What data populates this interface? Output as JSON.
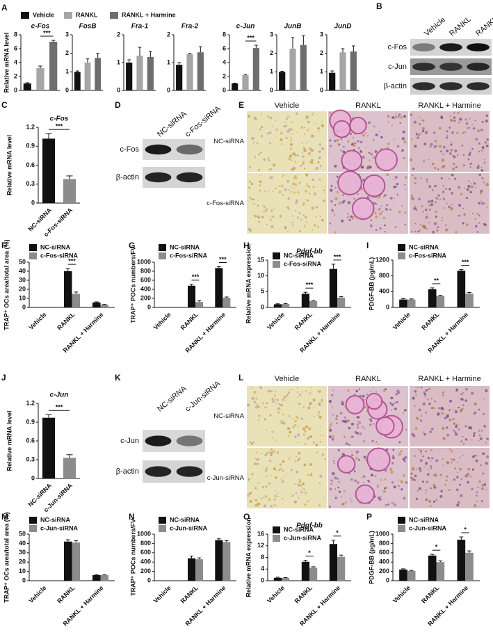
{
  "panel_a": {
    "label": "A",
    "ylabel": "Relative mRNA level",
    "legend": [
      {
        "name": "Vehicle",
        "color": "#111111"
      },
      {
        "name": "RANKL",
        "color": "#a6a6a6"
      },
      {
        "name": "RANKL + Harmine",
        "color": "#6e6e6e"
      }
    ]
  },
  "chart_data": [
    {
      "type": "bar",
      "title": "c-Fos",
      "values": [
        1,
        3.2,
        7.0
      ],
      "errors": [
        0.1,
        0.3,
        0.2
      ],
      "annotations": [
        null,
        null,
        "***"
      ],
      "ylim": [
        0,
        8
      ],
      "yticks": [
        0,
        2,
        4,
        6,
        8
      ]
    },
    {
      "type": "bar",
      "title": "FosB",
      "values": [
        1,
        1.5,
        1.75
      ],
      "errors": [
        0.05,
        0.2,
        0.25
      ],
      "ylim": [
        0,
        3
      ],
      "yticks": [
        0,
        1,
        2,
        3
      ]
    },
    {
      "type": "bar",
      "title": "Fra-1",
      "values": [
        1.0,
        1.25,
        1.2
      ],
      "errors": [
        0.1,
        0.3,
        0.2
      ],
      "ylim": [
        0,
        2
      ],
      "yticks": [
        0,
        1,
        2
      ]
    },
    {
      "type": "bar",
      "title": "Fra-2",
      "values": [
        0.92,
        1.3,
        1.37
      ],
      "errors": [
        0.08,
        0.03,
        0.2
      ],
      "ylim": [
        0,
        2
      ],
      "yticks": [
        0,
        1,
        2
      ]
    },
    {
      "type": "bar",
      "title": "c-Jun",
      "values": [
        1,
        2.2,
        6.1
      ],
      "errors": [
        0.05,
        0.1,
        0.4
      ],
      "annotations": [
        null,
        null,
        "***"
      ],
      "ylim": [
        0,
        8
      ],
      "yticks": [
        0,
        2,
        4,
        6,
        8
      ]
    },
    {
      "type": "bar",
      "title": "JunB",
      "values": [
        1,
        2.25,
        2.45
      ],
      "errors": [
        0.03,
        0.6,
        0.5
      ],
      "ylim": [
        0,
        3
      ],
      "yticks": [
        0,
        1,
        2,
        3
      ]
    },
    {
      "type": "bar",
      "title": "JunD",
      "values": [
        0.95,
        2.05,
        2.1
      ],
      "errors": [
        0.1,
        0.2,
        0.3
      ],
      "ylim": [
        0,
        3
      ],
      "yticks": [
        0,
        1,
        2,
        3
      ]
    },
    {
      "type": "bar",
      "label": "C",
      "title": "c-Fos",
      "ylabel": "Relative mRNA level",
      "categories": [
        "NC-siRNA",
        "c-Fos-siRNA"
      ],
      "colors": [
        "#111111",
        "#8c8c8c"
      ],
      "values": [
        1.02,
        0.38
      ],
      "errors": [
        0.08,
        0.05
      ],
      "annotations": [
        null,
        "***"
      ],
      "ylim": [
        0,
        1.2
      ],
      "yticks": [
        0,
        0.3,
        0.6,
        0.9,
        1.2
      ]
    },
    {
      "type": "grouped_bar",
      "label": "F",
      "ylabel": "TRAP⁺ OCs area/total area (%)",
      "categories": [
        "Vehicle",
        "RANKL",
        "RANKL + Harmine"
      ],
      "series": [
        {
          "name": "NC-siRNA",
          "color": "#111111",
          "values": [
            0,
            40,
            5.5
          ],
          "errors": [
            0,
            3,
            0.6
          ]
        },
        {
          "name": "c-Fos-siRNA",
          "color": "#8c8c8c",
          "values": [
            0,
            15,
            3
          ],
          "errors": [
            0,
            2,
            0.5
          ]
        }
      ],
      "annotations": [
        null,
        "***",
        null
      ],
      "ylim": [
        0,
        50
      ],
      "yticks": [
        0,
        10,
        20,
        30,
        40,
        50
      ]
    },
    {
      "type": "grouped_bar",
      "label": "G",
      "ylabel": "TRAP⁺ POCs numbers/FV",
      "categories": [
        "Vehicle",
        "RANKL",
        "RANKL + Harmine"
      ],
      "series": [
        {
          "name": "NC-siRNA",
          "color": "#111111",
          "values": [
            0,
            480,
            870
          ],
          "errors": [
            0,
            30,
            30
          ]
        },
        {
          "name": "c-Fos-siRNA",
          "color": "#8c8c8c",
          "values": [
            0,
            120,
            210
          ],
          "errors": [
            0,
            25,
            20
          ]
        }
      ],
      "annotations": [
        null,
        "***",
        "***"
      ],
      "ylim": [
        0,
        1000
      ],
      "yticks": [
        0,
        200,
        400,
        600,
        800,
        1000
      ]
    },
    {
      "type": "grouped_bar",
      "label": "H",
      "title": "Pdgf-bb",
      "ylabel": "Relative mRNA expression",
      "categories": [
        "Vehicle",
        "RANKL",
        "RANKL + Harmine"
      ],
      "series": [
        {
          "name": "NC-siRNA",
          "color": "#111111",
          "values": [
            1,
            4.3,
            12.2
          ],
          "errors": [
            0.15,
            0.5,
            1.5
          ]
        },
        {
          "name": "c-Fos-siRNA",
          "color": "#8c8c8c",
          "values": [
            1.1,
            2,
            3.1
          ],
          "errors": [
            0.15,
            0.2,
            0.3
          ]
        }
      ],
      "annotations": [
        null,
        "***",
        "***"
      ],
      "ylim": [
        0,
        15
      ],
      "yticks": [
        0,
        5,
        10,
        15
      ]
    },
    {
      "type": "grouped_bar",
      "label": "I",
      "ylabel": "PDGF-BB (pg/mL)",
      "categories": [
        "Vehicle",
        "RANKL",
        "RANKL + Harmine"
      ],
      "series": [
        {
          "name": "NC-siRNA",
          "color": "#111111",
          "values": [
            200,
            460,
            930
          ],
          "errors": [
            20,
            35,
            30
          ]
        },
        {
          "name": "c-Fos-siRNA",
          "color": "#8c8c8c",
          "values": [
            200,
            290,
            350
          ],
          "errors": [
            15,
            15,
            30
          ]
        }
      ],
      "annotations": [
        null,
        "**",
        "***"
      ],
      "ylim": [
        0,
        1200
      ],
      "yticks": [
        0,
        400,
        800,
        1200
      ]
    },
    {
      "type": "bar",
      "label": "J",
      "title": "c-Jun",
      "ylabel": "Relative mRNA level",
      "categories": [
        "NC-siRNA",
        "c-Jun-siRNA"
      ],
      "colors": [
        "#111111",
        "#8c8c8c"
      ],
      "values": [
        0.97,
        0.33
      ],
      "errors": [
        0.05,
        0.05
      ],
      "annotations": [
        null,
        "***"
      ],
      "ylim": [
        0,
        1.2
      ],
      "yticks": [
        0,
        0.3,
        0.6,
        0.9,
        1.2
      ]
    },
    {
      "type": "grouped_bar",
      "label": "M",
      "ylabel": "TRAP⁺ OCs area/total area (%)",
      "categories": [
        "Vehicle",
        "RANKL",
        "RANKL + Harmine"
      ],
      "series": [
        {
          "name": "NC-siRNA",
          "color": "#111111",
          "values": [
            0,
            42,
            6
          ],
          "errors": [
            0,
            2,
            0.5
          ]
        },
        {
          "name": "c-Jun-siRNA",
          "color": "#8c8c8c",
          "values": [
            0,
            41,
            6
          ],
          "errors": [
            0,
            2,
            0.5
          ]
        }
      ],
      "ylim": [
        0,
        50
      ],
      "yticks": [
        0,
        10,
        20,
        30,
        40,
        50
      ]
    },
    {
      "type": "grouped_bar",
      "label": "N",
      "ylabel": "TRAP⁺ POCs numbers/FV",
      "categories": [
        "Vehicle",
        "RANKL",
        "RANKL + Harmine"
      ],
      "series": [
        {
          "name": "NC-siRNA",
          "color": "#111111",
          "values": [
            0,
            480,
            870
          ],
          "errors": [
            0,
            50,
            30
          ]
        },
        {
          "name": "c-Jun-siRNA",
          "color": "#8c8c8c",
          "values": [
            0,
            460,
            830
          ],
          "errors": [
            0,
            30,
            30
          ]
        }
      ],
      "ylim": [
        0,
        1000
      ],
      "yticks": [
        0,
        200,
        400,
        600,
        800,
        1000
      ]
    },
    {
      "type": "grouped_bar",
      "label": "O",
      "title": "Pdgf-bb",
      "ylabel": "Relative mRNA expression",
      "categories": [
        "Vehicle",
        "RANKL",
        "RANKL + Harmine"
      ],
      "series": [
        {
          "name": "NC-siRNA",
          "color": "#111111",
          "values": [
            1,
            6.5,
            12.6
          ],
          "errors": [
            0.2,
            0.5,
            1.3
          ]
        },
        {
          "name": "c-Jun-siRNA",
          "color": "#8c8c8c",
          "values": [
            1,
            4.5,
            8.2
          ],
          "errors": [
            0.1,
            0.3,
            0.6
          ]
        }
      ],
      "annotations": [
        null,
        "*",
        "*"
      ],
      "ylim": [
        0,
        16
      ],
      "yticks": [
        0,
        4,
        8,
        12,
        16
      ]
    },
    {
      "type": "grouped_bar",
      "label": "P",
      "ylabel": "PDGF-BB (pg/mL)",
      "categories": [
        "Vehicle",
        "RANKL",
        "RANKL + Harmine"
      ],
      "series": [
        {
          "name": "NC-siRNA",
          "color": "#111111",
          "values": [
            240,
            540,
            880
          ],
          "errors": [
            15,
            25,
            60
          ]
        },
        {
          "name": "c-Jun-siRNA",
          "color": "#8c8c8c",
          "values": [
            210,
            400,
            600
          ],
          "errors": [
            10,
            25,
            40
          ]
        }
      ],
      "annotations": [
        null,
        "*",
        "*"
      ],
      "ylim": [
        0,
        1000
      ],
      "yticks": [
        0,
        200,
        400,
        600,
        800,
        1000
      ]
    }
  ],
  "blots": [
    {
      "label": "B",
      "lanes": [
        "Vehicle",
        "RANKL",
        "RANKL + Harmine"
      ],
      "rows": [
        "c-Fos",
        "c-Jun",
        "β-actin"
      ]
    },
    {
      "label": "D",
      "lanes": [
        "NC-siRNA",
        "c-Fos-siRNA"
      ],
      "rows": [
        "c-Fos",
        "β-actin"
      ]
    },
    {
      "label": "K",
      "lanes": [
        "NC-siRNA",
        "c-Jun-siRNA"
      ],
      "rows": [
        "c-Jun",
        "β-actin"
      ]
    }
  ],
  "micrographs": [
    {
      "label": "E",
      "columns": [
        "Vehicle",
        "RANKL",
        "RANKL + Harmine"
      ],
      "rows": [
        "NC-siRNA",
        "c-Fos-siRNA"
      ]
    },
    {
      "label": "L",
      "columns": [
        "Vehicle",
        "RANKL",
        "RANKL + Harmine"
      ],
      "rows": [
        "NC-siRNA",
        "c-Jun-siRNA"
      ]
    }
  ]
}
